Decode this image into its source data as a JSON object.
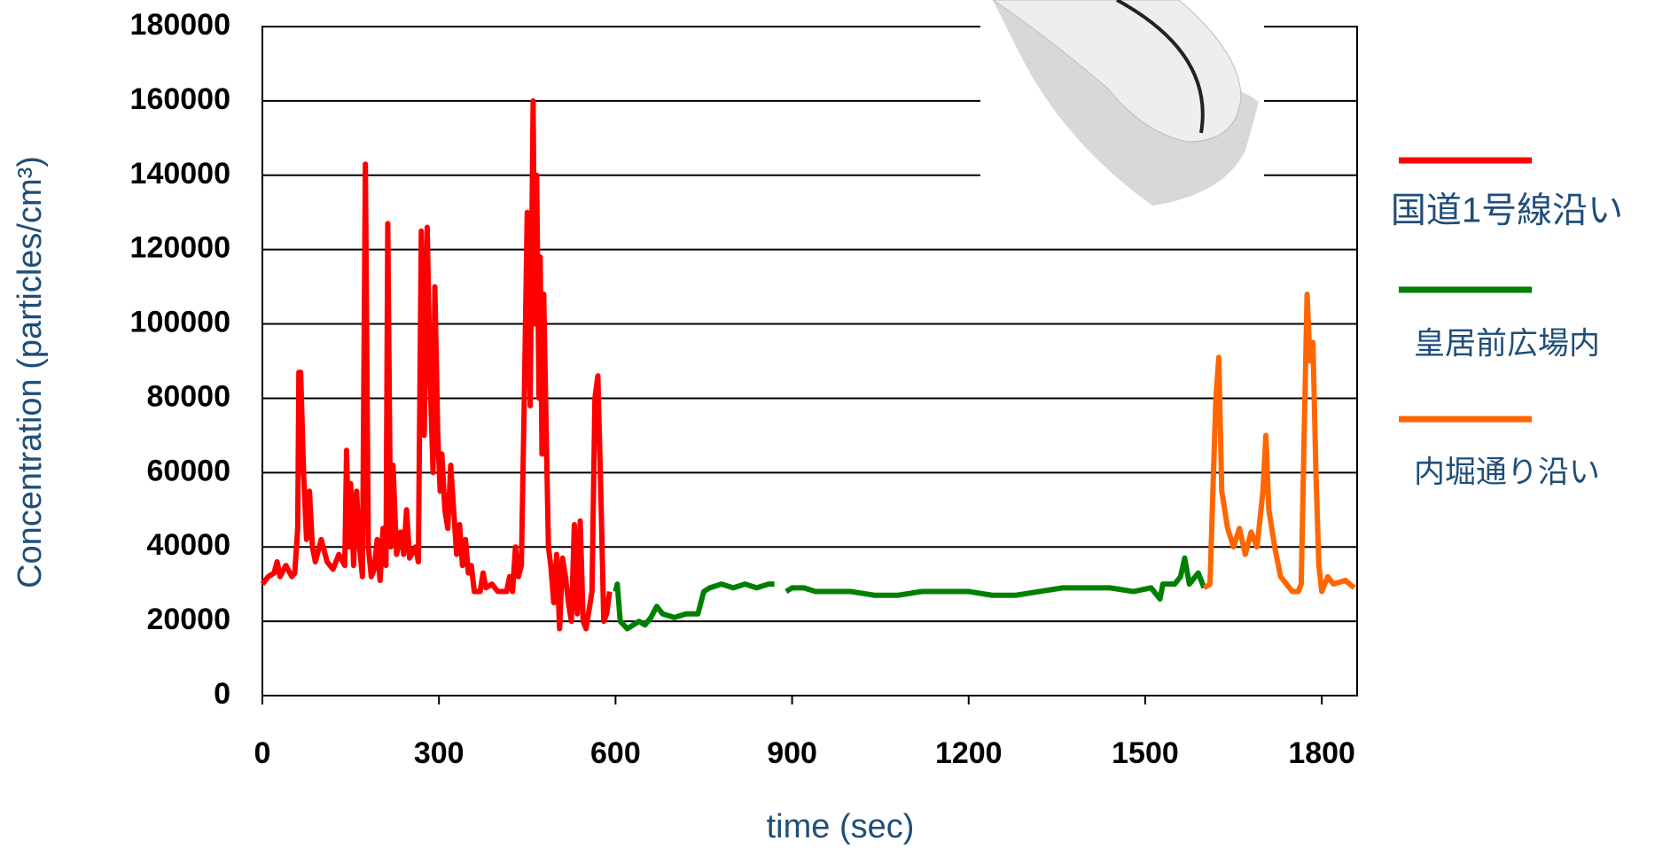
{
  "chart_data": {
    "type": "line",
    "xlabel": "time (sec)",
    "ylabel": "Concentration (particles/cm³)",
    "xlim": [
      0,
      1860
    ],
    "xticks": [
      0,
      300,
      600,
      900,
      1200,
      1500,
      1800
    ],
    "ylim": [
      0,
      180000
    ],
    "yticks": [
      0,
      20000,
      40000,
      60000,
      80000,
      100000,
      120000,
      140000,
      160000,
      180000
    ],
    "grid": true,
    "legend": "right",
    "series": [
      {
        "name": "国道1号線沿い",
        "color": "#ff0000",
        "x": [
          0,
          10,
          20,
          25,
          30,
          40,
          50,
          55,
          60,
          62,
          65,
          70,
          75,
          80,
          85,
          90,
          100,
          110,
          120,
          130,
          140,
          143,
          147,
          150,
          155,
          160,
          165,
          170,
          175,
          180,
          185,
          190,
          195,
          200,
          205,
          210,
          213,
          218,
          222,
          228,
          235,
          240,
          245,
          250,
          260,
          265,
          270,
          275,
          280,
          285,
          290,
          293,
          298,
          302,
          305,
          310,
          315,
          320,
          325,
          330,
          335,
          340,
          345,
          350,
          355,
          360,
          370,
          375,
          380,
          390,
          400,
          415,
          420,
          425,
          430,
          435,
          440,
          445,
          450,
          455,
          460,
          463,
          466,
          470,
          472,
          475,
          478,
          480,
          483,
          486,
          490,
          495,
          500,
          505,
          510,
          515,
          520,
          525,
          530,
          535,
          540,
          545,
          550,
          555,
          560,
          565,
          570,
          575,
          580,
          585,
          590
        ],
        "values": [
          30000,
          32000,
          33000,
          36000,
          32000,
          35000,
          32000,
          33000,
          45000,
          87000,
          87000,
          60000,
          42000,
          55000,
          40000,
          36000,
          42000,
          36000,
          34000,
          38000,
          35000,
          66000,
          40000,
          57000,
          35000,
          55000,
          40000,
          32000,
          143000,
          40000,
          32000,
          34000,
          42000,
          31000,
          45000,
          35000,
          127000,
          40000,
          62000,
          38000,
          44000,
          38000,
          50000,
          37000,
          40000,
          36000,
          125000,
          70000,
          126000,
          85000,
          60000,
          110000,
          70000,
          55000,
          65000,
          50000,
          45000,
          62000,
          50000,
          38000,
          46000,
          35000,
          42000,
          33000,
          35000,
          28000,
          28000,
          33000,
          29000,
          30000,
          28000,
          28000,
          32000,
          28000,
          40000,
          32000,
          35000,
          80000,
          130000,
          78000,
          160000,
          100000,
          140000,
          80000,
          118000,
          65000,
          108000,
          90000,
          65000,
          40000,
          35000,
          25000,
          38000,
          18000,
          37000,
          32000,
          25000,
          20000,
          46000,
          22000,
          47000,
          20000,
          18000,
          23000,
          28000,
          80000,
          86000,
          55000,
          20000,
          22000,
          28000
        ]
      },
      {
        "name": "皇居前広場内",
        "color": "#008000",
        "x": [
          600,
          603,
          608,
          620,
          630,
          640,
          650,
          660,
          670,
          680,
          700,
          720,
          740,
          750,
          760,
          780,
          800,
          820,
          840,
          860,
          870,
          880,
          890,
          900,
          920,
          940,
          960,
          1000,
          1040,
          1080,
          1120,
          1160,
          1200,
          1240,
          1280,
          1320,
          1360,
          1400,
          1440,
          1480,
          1510,
          1525,
          1530,
          1550,
          1560,
          1567,
          1575,
          1590,
          1600
        ],
        "values": [
          28000,
          30000,
          20000,
          18000,
          19000,
          20000,
          19000,
          21000,
          24000,
          22000,
          21000,
          22000,
          22000,
          28000,
          29000,
          30000,
          29000,
          30000,
          29000,
          30000,
          30000,
          null,
          28000,
          29000,
          29000,
          28000,
          28000,
          28000,
          27000,
          27000,
          28000,
          28000,
          28000,
          27000,
          27000,
          28000,
          29000,
          29000,
          29000,
          28000,
          29000,
          26000,
          30000,
          30000,
          32000,
          37000,
          30000,
          33000,
          29000
        ]
      },
      {
        "name": "内堀通り沿い",
        "color": "#ff6600",
        "x": [
          1600,
          1610,
          1615,
          1620,
          1625,
          1630,
          1640,
          1650,
          1660,
          1670,
          1680,
          1690,
          1700,
          1705,
          1710,
          1720,
          1730,
          1740,
          1750,
          1760,
          1765,
          1770,
          1775,
          1780,
          1785,
          1790,
          1795,
          1800,
          1810,
          1820,
          1840,
          1855
        ],
        "values": [
          29000,
          30000,
          55000,
          80000,
          91000,
          55000,
          45000,
          40000,
          45000,
          38000,
          44000,
          40000,
          55000,
          70000,
          50000,
          40000,
          32000,
          30000,
          28000,
          28000,
          30000,
          70000,
          108000,
          90000,
          95000,
          60000,
          35000,
          28000,
          32000,
          30000,
          31000,
          29000
        ]
      }
    ]
  }
}
